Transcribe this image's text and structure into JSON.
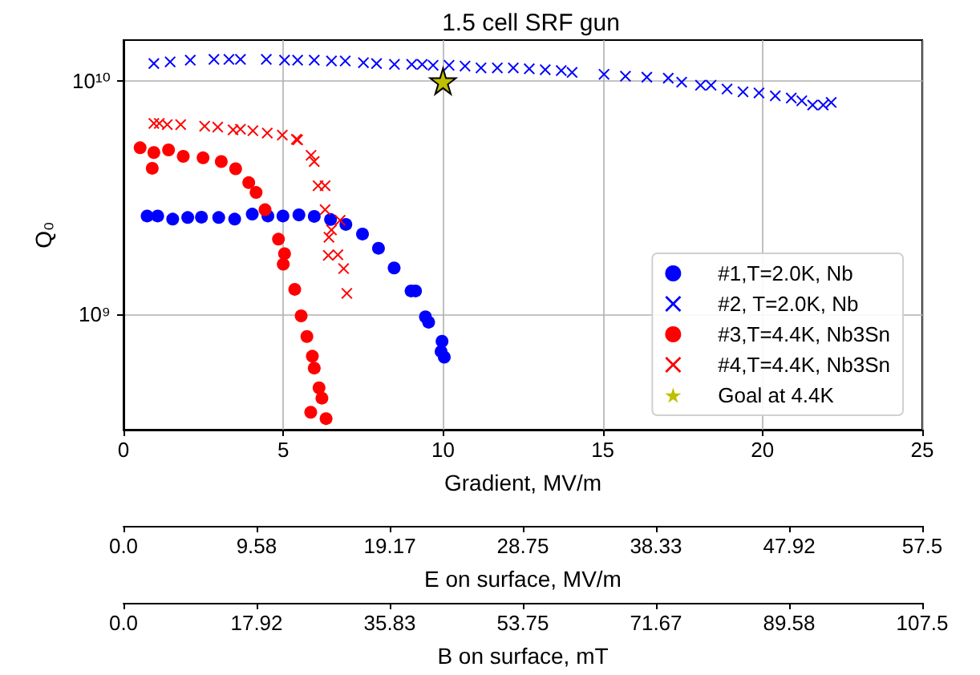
{
  "chart_data": {
    "type": "scatter",
    "title": "1.5 cell SRF gun",
    "xlabel": "Gradient, MV/m",
    "ylabel": "Q₀",
    "x2label": "E on surface, MV/m",
    "annotations": [
      "0.0",
      "17.92",
      "35.83",
      "53.75",
      "71.67",
      "89.58",
      "107.5",
      "B on surface, mT"
    ],
    "xlim": [
      0,
      25
    ],
    "xticks": [
      0,
      5,
      10,
      15,
      20,
      25
    ],
    "x2lim": [
      0,
      57.5
    ],
    "x2ticks": [
      {
        "value": 0,
        "label": "0.0"
      },
      9.58,
      19.17,
      28.75,
      38.33,
      47.92,
      57.5
    ],
    "ylim": [
      320000000.0,
      15000000000.0
    ],
    "yticks": [
      {
        "value": 1000000000.0,
        "label": "10⁹"
      },
      {
        "value": 10000000000.0,
        "label": "10¹⁰"
      }
    ],
    "log": "y",
    "grid": true,
    "legend": "bottom right",
    "series": [
      {
        "name": "#1,T=2.0K, Nb",
        "color": "#0000ff",
        "marker": "circle",
        "x": [
          0.74,
          1.07,
          1.54,
          2.01,
          2.44,
          2.98,
          3.48,
          4.03,
          4.52,
          4.99,
          5.49,
          5.97,
          6.48,
          6.96,
          7.48,
          7.98,
          8.47,
          9.0,
          9.14,
          9.45,
          9.55,
          9.97,
          9.94,
          10.04
        ],
        "values": [
          2640000000.0,
          2640000000.0,
          2560000000.0,
          2600000000.0,
          2610000000.0,
          2600000000.0,
          2560000000.0,
          2690000000.0,
          2640000000.0,
          2640000000.0,
          2670000000.0,
          2630000000.0,
          2550000000.0,
          2430000000.0,
          2210000000.0,
          1920000000.0,
          1580000000.0,
          1260000000.0,
          1260000000.0,
          975000000.0,
          925000000.0,
          766000000.0,
          693000000.0,
          655000000.0
        ]
      },
      {
        "name": "#2, T=2.0K, Nb",
        "color": "#0000ff",
        "marker": "cross",
        "x": [
          0.95,
          1.46,
          2.09,
          2.83,
          3.3,
          3.66,
          4.47,
          5.04,
          5.45,
          5.97,
          6.51,
          6.94,
          7.51,
          7.92,
          8.48,
          9.02,
          9.35,
          9.69,
          10.19,
          10.69,
          11.19,
          11.7,
          12.2,
          12.7,
          13.2,
          13.7,
          14.04,
          15.04,
          15.71,
          16.38,
          17.05,
          17.47,
          18.06,
          18.39,
          18.89,
          19.39,
          19.89,
          20.4,
          20.9,
          21.23,
          21.57,
          21.9,
          22.15
        ],
        "values": [
          11900000000.0,
          12100000000.0,
          12300000000.0,
          12400000000.0,
          12400000000.0,
          12400000000.0,
          12400000000.0,
          12300000000.0,
          12300000000.0,
          12300000000.0,
          12200000000.0,
          12200000000.0,
          12000000000.0,
          11900000000.0,
          11800000000.0,
          11800000000.0,
          11800000000.0,
          11700000000.0,
          11700000000.0,
          11600000000.0,
          11400000000.0,
          11400000000.0,
          11400000000.0,
          11300000000.0,
          11200000000.0,
          11100000000.0,
          10900000000.0,
          10700000000.0,
          10500000000.0,
          10400000000.0,
          10300000000.0,
          9900000000.0,
          9600000000.0,
          9600000000.0,
          9250000000.0,
          9000000000.0,
          8900000000.0,
          8650000000.0,
          8460000000.0,
          8240000000.0,
          7900000000.0,
          7900000000.0,
          8100000000.0
        ]
      },
      {
        "name": "#3,T=4.4K, Nb3Sn",
        "color": "#ff0000",
        "marker": "circle",
        "x": [
          0.52,
          0.95,
          0.9,
          1.41,
          1.87,
          2.49,
          3.06,
          3.51,
          3.92,
          4.15,
          4.43,
          4.85,
          5.04,
          5.0,
          5.36,
          5.56,
          5.74,
          5.91,
          5.97,
          6.12,
          6.21,
          5.86,
          6.34
        ],
        "values": [
          5180000000.0,
          4940000000.0,
          4230000000.0,
          5070000000.0,
          4760000000.0,
          4690000000.0,
          4520000000.0,
          4210000000.0,
          3670000000.0,
          3330000000.0,
          2810000000.0,
          2100000000.0,
          1820000000.0,
          1640000000.0,
          1280000000.0,
          985000000.0,
          803000000.0,
          661000000.0,
          588000000.0,
          484000000.0,
          437000000.0,
          380000000.0,
          357000000.0
        ]
      },
      {
        "name": "#4,T=4.4K, Nb3Sn",
        "color": "#ff0000",
        "marker": "cross",
        "x": [
          0.95,
          1.12,
          1.37,
          1.79,
          2.54,
          2.95,
          3.43,
          3.66,
          4.05,
          4.5,
          4.97,
          5.41,
          5.45,
          5.87,
          5.97,
          6.09,
          6.31,
          6.31,
          6.78,
          6.51,
          6.43,
          6.41,
          6.71,
          6.89,
          6.99
        ],
        "values": [
          6590000000.0,
          6590000000.0,
          6510000000.0,
          6510000000.0,
          6410000000.0,
          6350000000.0,
          6180000000.0,
          6220000000.0,
          6130000000.0,
          5990000000.0,
          5870000000.0,
          5630000000.0,
          5600000000.0,
          4810000000.0,
          4520000000.0,
          3560000000.0,
          3560000000.0,
          2810000000.0,
          2530000000.0,
          2300000000.0,
          2140000000.0,
          1790000000.0,
          1800000000.0,
          1570000000.0,
          1230000000.0
        ]
      },
      {
        "name": "Goal at 4.4K",
        "color": "#bfbf00",
        "marker": "star",
        "x": [
          10
        ],
        "values": [
          10000000000.0
        ]
      }
    ]
  }
}
